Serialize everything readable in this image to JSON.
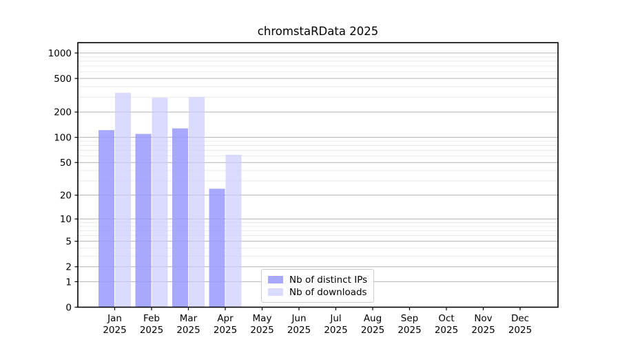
{
  "chart_data": {
    "type": "bar",
    "title": "chromstaRData 2025",
    "categories": [
      {
        "month": "Jan",
        "year": "2025"
      },
      {
        "month": "Feb",
        "year": "2025"
      },
      {
        "month": "Mar",
        "year": "2025"
      },
      {
        "month": "Apr",
        "year": "2025"
      },
      {
        "month": "May",
        "year": "2025"
      },
      {
        "month": "Jun",
        "year": "2025"
      },
      {
        "month": "Jul",
        "year": "2025"
      },
      {
        "month": "Aug",
        "year": "2025"
      },
      {
        "month": "Sep",
        "year": "2025"
      },
      {
        "month": "Oct",
        "year": "2025"
      },
      {
        "month": "Nov",
        "year": "2025"
      },
      {
        "month": "Dec",
        "year": "2025"
      }
    ],
    "series": [
      {
        "name": "Nb of distinct IPs",
        "color": "#9999ff",
        "values": [
          122,
          110,
          128,
          24,
          0,
          0,
          0,
          0,
          0,
          0,
          0,
          0
        ]
      },
      {
        "name": "Nb of downloads",
        "color": "#ccccff",
        "values": [
          338,
          296,
          301,
          62,
          0,
          0,
          0,
          0,
          0,
          0,
          0,
          0
        ]
      }
    ],
    "y_scale": "log10(1+x)",
    "yticks_major": [
      0,
      1,
      2,
      5,
      10,
      20,
      50,
      100,
      200,
      500,
      1000
    ],
    "yticks_minor": [
      3,
      4,
      6,
      7,
      8,
      9,
      30,
      40,
      60,
      70,
      80,
      90,
      300,
      400,
      600,
      700,
      800,
      900
    ],
    "ylim": [
      0,
      1328
    ],
    "grid": "horizontal",
    "legend_position": "lower-center",
    "colors": {
      "grid_major": "#b3b3b3",
      "grid_minor": "#e9e9e9",
      "axis": "#000000",
      "text": "#000000"
    }
  }
}
